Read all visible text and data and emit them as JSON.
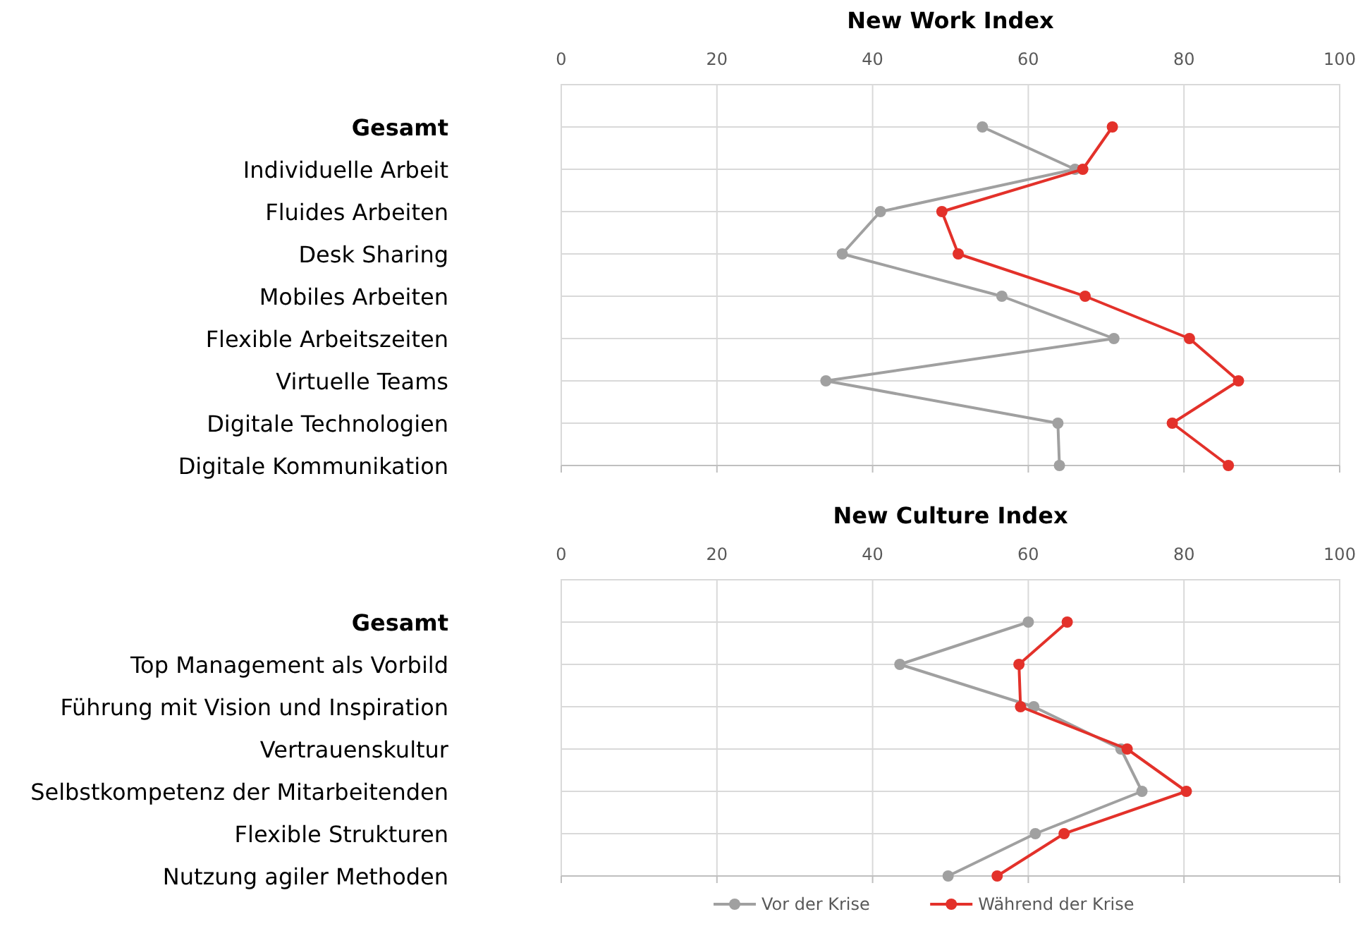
{
  "chart_data": [
    {
      "type": "line",
      "title": "New Work Index",
      "orientation": "horizontal",
      "categories": [
        "Gesamt",
        "Individuelle Arbeit",
        "Fluides Arbeiten",
        "Desk Sharing",
        "Mobiles Arbeiten",
        "Flexible Arbeitszeiten",
        "Virtuelle Teams",
        "Digitale Technologien",
        "Digitale Kommunikation"
      ],
      "xlim": [
        0,
        100
      ],
      "xticks": [
        0,
        20,
        40,
        60,
        80,
        100
      ],
      "grid": true,
      "marker": "circle",
      "legend": false,
      "series": [
        {
          "color": "#a0a0a0",
          "values": [
            54.1,
            66.0,
            41.0,
            36.1,
            56.6,
            71.0,
            34.0,
            63.8,
            64.0
          ]
        },
        {
          "color": "#e3312a",
          "values": [
            70.8,
            67.0,
            48.9,
            51.0,
            67.3,
            80.7,
            87.0,
            78.5,
            85.7
          ]
        }
      ]
    },
    {
      "type": "line",
      "title": "New Culture Index",
      "orientation": "horizontal",
      "categories": [
        "Gesamt",
        "Top Management als Vorbild",
        "Führung mit Vision und Inspiration",
        "Vertrauenskultur",
        "Selbstkompetenz der Mitarbeitenden",
        "Flexible Strukturen",
        "Nutzung agiler Methoden"
      ],
      "xlim": [
        0,
        100
      ],
      "xticks": [
        0,
        20,
        40,
        60,
        80,
        100
      ],
      "grid": true,
      "marker": "circle",
      "legend": "bottom",
      "series": [
        {
          "name": "Vor der Krise",
          "color": "#a0a0a0",
          "values": [
            60.0,
            43.5,
            60.7,
            71.9,
            74.6,
            60.9,
            49.7
          ]
        },
        {
          "name": "Während der Krise",
          "color": "#e3312a",
          "values": [
            65.0,
            58.8,
            59.0,
            72.7,
            80.3,
            64.6,
            56.0
          ]
        }
      ]
    }
  ]
}
